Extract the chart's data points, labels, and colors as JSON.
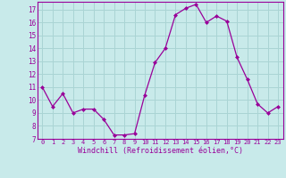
{
  "x": [
    0,
    1,
    2,
    3,
    4,
    5,
    6,
    7,
    8,
    9,
    10,
    11,
    12,
    13,
    14,
    15,
    16,
    17,
    18,
    19,
    20,
    21,
    22,
    23
  ],
  "y": [
    11,
    9.5,
    10.5,
    9,
    9.3,
    9.3,
    8.5,
    7.3,
    7.3,
    7.4,
    10.4,
    12.9,
    14.0,
    16.6,
    17.1,
    17.4,
    16.0,
    16.5,
    16.1,
    13.3,
    11.6,
    9.7,
    9.0,
    9.5
  ],
  "line_color": "#990099",
  "marker": "D",
  "marker_size": 2,
  "bg_color": "#c8eaea",
  "grid_color": "#aad4d4",
  "xlabel": "Windchill (Refroidissement éolien,°C)",
  "xlabel_color": "#990099",
  "tick_color": "#990099",
  "ylim": [
    7,
    17.6
  ],
  "xlim": [
    -0.5,
    23.5
  ],
  "yticks": [
    7,
    8,
    9,
    10,
    11,
    12,
    13,
    14,
    15,
    16,
    17
  ],
  "xticks": [
    0,
    1,
    2,
    3,
    4,
    5,
    6,
    7,
    8,
    9,
    10,
    11,
    12,
    13,
    14,
    15,
    16,
    17,
    18,
    19,
    20,
    21,
    22,
    23
  ],
  "xtick_labels": [
    "0",
    "1",
    "2",
    "3",
    "4",
    "5",
    "6",
    "7",
    "8",
    "9",
    "10",
    "11",
    "12",
    "13",
    "14",
    "15",
    "16",
    "17",
    "18",
    "19",
    "20",
    "21",
    "22",
    "23"
  ]
}
